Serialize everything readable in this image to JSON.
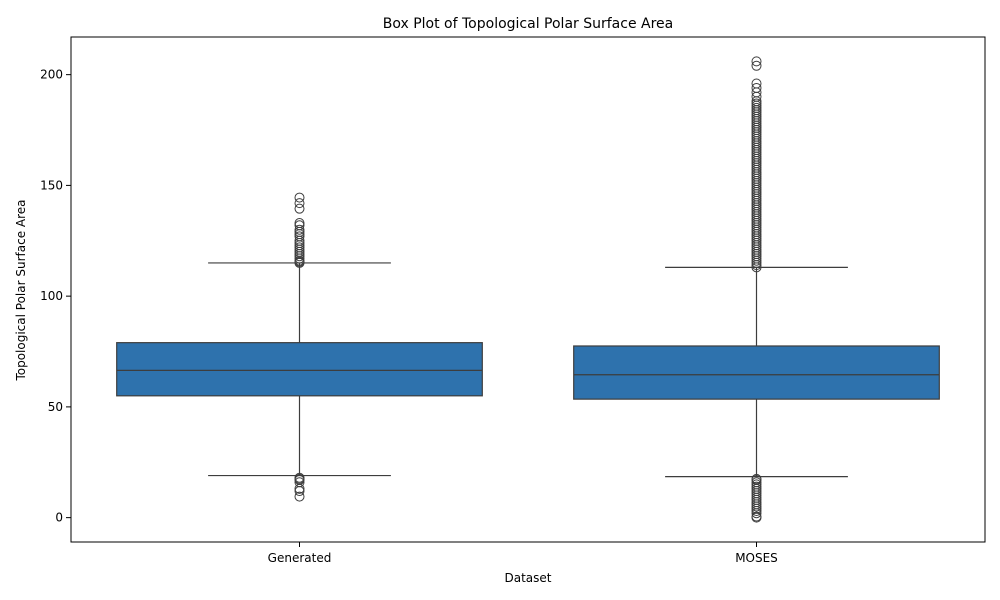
{
  "chart_data": {
    "type": "box",
    "title": "Box Plot of Topological Polar Surface Area",
    "xlabel": "Dataset",
    "ylabel": "Topological Polar Surface Area",
    "ylim": [
      -11,
      217
    ],
    "yticks": [
      0,
      50,
      100,
      150,
      200
    ],
    "categories": [
      "Generated",
      "MOSES"
    ],
    "box_color": "#2e72ad",
    "line_color": "#3d3d3d",
    "boxes": [
      {
        "category": "Generated",
        "q1": 55,
        "median": 66.5,
        "q3": 79,
        "whisker_low": 19,
        "whisker_high": 115,
        "outliers": [
          9.5,
          12,
          13,
          16,
          17,
          17.5,
          18,
          115,
          115.5,
          116,
          117,
          118,
          119,
          120,
          121,
          122,
          123,
          124,
          125,
          127,
          128,
          129,
          130,
          132,
          133,
          139.5,
          142,
          144.5
        ]
      },
      {
        "category": "MOSES",
        "q1": 53.5,
        "median": 64.5,
        "q3": 77.5,
        "whisker_low": 18.5,
        "whisker_high": 113,
        "outliers": [
          0,
          0.5,
          2,
          3,
          4,
          5,
          6,
          7,
          8,
          9,
          10,
          11,
          12,
          13,
          14,
          15,
          16,
          17,
          17.5,
          113,
          114,
          115,
          116,
          117,
          118,
          119,
          120,
          121,
          122,
          123,
          124,
          125,
          126,
          127,
          128,
          129,
          130,
          131,
          132,
          133,
          134,
          135,
          136,
          137,
          138,
          139,
          140,
          141,
          142,
          143,
          144,
          145,
          146,
          147,
          148,
          149,
          150,
          151,
          152,
          153,
          154,
          155,
          156,
          157,
          158,
          159,
          160,
          161,
          162,
          163,
          164,
          165,
          166,
          167,
          168,
          169,
          170,
          171,
          172,
          173,
          174,
          175,
          176,
          177,
          178,
          179,
          180,
          181,
          182,
          183,
          184,
          185,
          186,
          187,
          188,
          190,
          192,
          194,
          196,
          204,
          206
        ]
      }
    ]
  }
}
